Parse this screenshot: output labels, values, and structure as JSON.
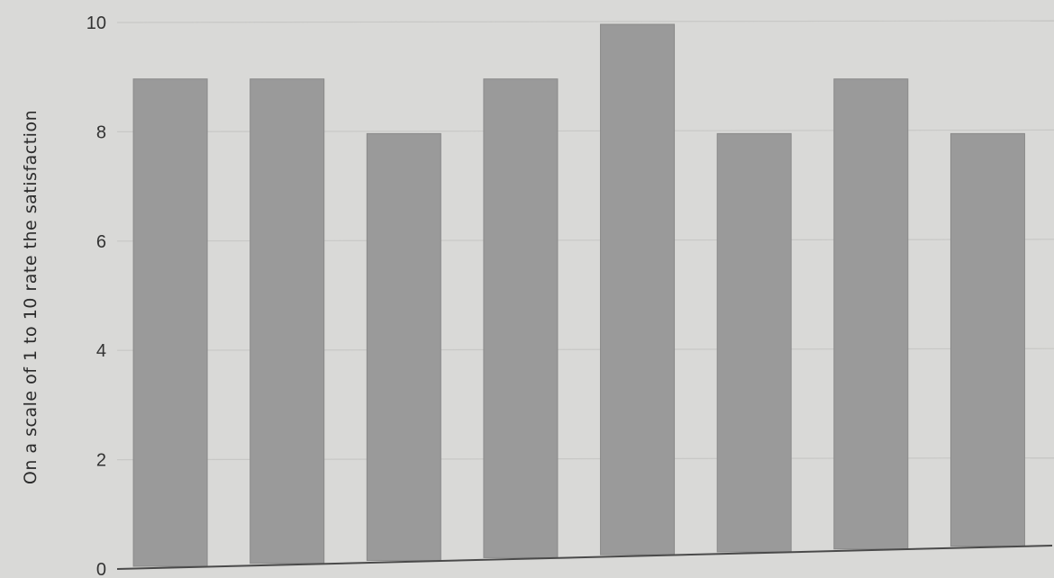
{
  "chart_data": {
    "type": "bar",
    "title": "",
    "xlabel": "",
    "ylabel": "On a scale of 1 to 10 rate the satisfaction",
    "categories": [
      "",
      "",
      "",
      "",
      "",
      "",
      "",
      ""
    ],
    "values": [
      9.0,
      9.0,
      8.0,
      9.0,
      10.0,
      8.0,
      9.0,
      8.0
    ],
    "ylim": [
      0,
      10
    ],
    "yticks": [
      0,
      2,
      4,
      6,
      8,
      10
    ],
    "grid": true,
    "legend": "none",
    "colors": {
      "bar": "#9a9a9a",
      "bar_edge": "#8a8a8a",
      "grid": "#c8c8c6",
      "axis": "#4a4a4a",
      "background": "#d9d9d7"
    }
  }
}
